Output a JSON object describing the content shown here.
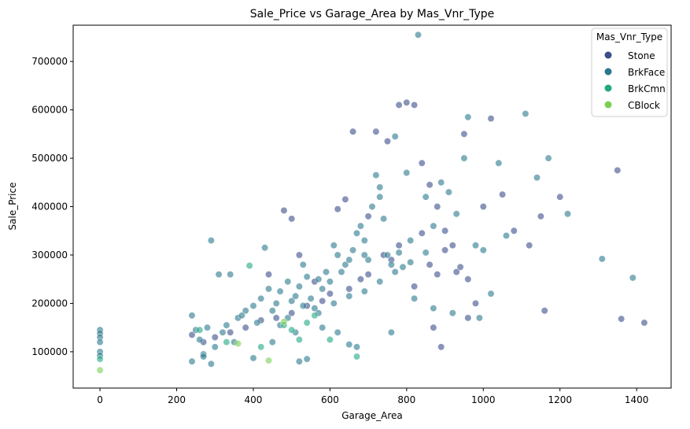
{
  "chart_data": {
    "type": "scatter",
    "title": "Sale_Price vs Garage_Area by Mas_Vnr_Type",
    "xlabel": "Garage_Area",
    "ylabel": "Sale_Price",
    "xlim": [
      -70,
      1490
    ],
    "ylim": [
      25000,
      775000
    ],
    "x_ticks": [
      0,
      200,
      400,
      600,
      800,
      1000,
      1200,
      1400
    ],
    "y_ticks": [
      100000,
      200000,
      300000,
      400000,
      500000,
      600000,
      700000
    ],
    "grid": false,
    "legend": {
      "title": "Mas_Vnr_Type",
      "placement": "top-right"
    },
    "series": [
      {
        "name": "Stone",
        "color": "#3b4d8a",
        "points": [
          [
            480,
            392000
          ],
          [
            500,
            375000
          ],
          [
            440,
            260000
          ],
          [
            520,
            300000
          ],
          [
            560,
            245000
          ],
          [
            620,
            395000
          ],
          [
            640,
            415000
          ],
          [
            660,
            555000
          ],
          [
            700,
            380000
          ],
          [
            720,
            555000
          ],
          [
            750,
            535000
          ],
          [
            780,
            610000
          ],
          [
            800,
            615000
          ],
          [
            820,
            610000
          ],
          [
            840,
            490000
          ],
          [
            860,
            445000
          ],
          [
            880,
            400000
          ],
          [
            900,
            350000
          ],
          [
            920,
            320000
          ],
          [
            940,
            275000
          ],
          [
            960,
            250000
          ],
          [
            980,
            200000
          ],
          [
            1000,
            400000
          ],
          [
            1020,
            582000
          ],
          [
            1050,
            425000
          ],
          [
            1080,
            350000
          ],
          [
            1120,
            320000
          ],
          [
            1150,
            380000
          ],
          [
            1160,
            185000
          ],
          [
            1200,
            420000
          ],
          [
            1350,
            475000
          ],
          [
            1360,
            168000
          ],
          [
            1420,
            160000
          ],
          [
            950,
            550000
          ],
          [
            880,
            260000
          ],
          [
            860,
            280000
          ],
          [
            820,
            235000
          ],
          [
            780,
            320000
          ],
          [
            760,
            290000
          ],
          [
            740,
            300000
          ],
          [
            700,
            260000
          ],
          [
            680,
            250000
          ],
          [
            650,
            230000
          ],
          [
            600,
            220000
          ],
          [
            580,
            205000
          ],
          [
            540,
            195000
          ],
          [
            500,
            180000
          ],
          [
            460,
            170000
          ],
          [
            420,
            165000
          ],
          [
            380,
            150000
          ],
          [
            340,
            140000
          ],
          [
            300,
            130000
          ],
          [
            270,
            120000
          ],
          [
            240,
            135000
          ],
          [
            840,
            345000
          ],
          [
            900,
            310000
          ],
          [
            930,
            265000
          ],
          [
            960,
            170000
          ],
          [
            870,
            150000
          ],
          [
            890,
            110000
          ]
        ]
      },
      {
        "name": "BrkFace",
        "color": "#2a788e",
        "points": [
          [
            0,
            145000
          ],
          [
            0,
            138000
          ],
          [
            0,
            130000
          ],
          [
            0,
            120000
          ],
          [
            0,
            100000
          ],
          [
            0,
            92000
          ],
          [
            240,
            175000
          ],
          [
            250,
            145000
          ],
          [
            260,
            125000
          ],
          [
            270,
            95000
          ],
          [
            280,
            150000
          ],
          [
            290,
            330000
          ],
          [
            300,
            110000
          ],
          [
            310,
            260000
          ],
          [
            320,
            140000
          ],
          [
            340,
            260000
          ],
          [
            360,
            170000
          ],
          [
            380,
            185000
          ],
          [
            400,
            195000
          ],
          [
            420,
            210000
          ],
          [
            430,
            315000
          ],
          [
            440,
            230000
          ],
          [
            460,
            200000
          ],
          [
            470,
            225000
          ],
          [
            490,
            245000
          ],
          [
            500,
            205000
          ],
          [
            510,
            215000
          ],
          [
            520,
            235000
          ],
          [
            530,
            280000
          ],
          [
            540,
            255000
          ],
          [
            550,
            210000
          ],
          [
            560,
            190000
          ],
          [
            570,
            250000
          ],
          [
            580,
            230000
          ],
          [
            590,
            265000
          ],
          [
            600,
            245000
          ],
          [
            610,
            320000
          ],
          [
            620,
            300000
          ],
          [
            630,
            265000
          ],
          [
            640,
            280000
          ],
          [
            650,
            290000
          ],
          [
            660,
            310000
          ],
          [
            670,
            345000
          ],
          [
            680,
            360000
          ],
          [
            690,
            330000
          ],
          [
            700,
            290000
          ],
          [
            710,
            400000
          ],
          [
            720,
            465000
          ],
          [
            730,
            420000
          ],
          [
            740,
            375000
          ],
          [
            750,
            300000
          ],
          [
            760,
            280000
          ],
          [
            770,
            545000
          ],
          [
            780,
            305000
          ],
          [
            790,
            275000
          ],
          [
            800,
            470000
          ],
          [
            810,
            330000
          ],
          [
            830,
            755000
          ],
          [
            850,
            420000
          ],
          [
            870,
            360000
          ],
          [
            890,
            450000
          ],
          [
            910,
            430000
          ],
          [
            930,
            385000
          ],
          [
            950,
            500000
          ],
          [
            960,
            585000
          ],
          [
            980,
            320000
          ],
          [
            1000,
            310000
          ],
          [
            1020,
            220000
          ],
          [
            1040,
            490000
          ],
          [
            1060,
            340000
          ],
          [
            1110,
            592000
          ],
          [
            1140,
            460000
          ],
          [
            1170,
            500000
          ],
          [
            1220,
            385000
          ],
          [
            1310,
            292000
          ],
          [
            1390,
            253000
          ],
          [
            240,
            80000
          ],
          [
            270,
            90000
          ],
          [
            290,
            75000
          ],
          [
            350,
            120000
          ],
          [
            400,
            87000
          ],
          [
            450,
            120000
          ],
          [
            520,
            80000
          ],
          [
            540,
            85000
          ],
          [
            580,
            150000
          ],
          [
            620,
            140000
          ],
          [
            650,
            115000
          ],
          [
            670,
            110000
          ],
          [
            690,
            300000
          ],
          [
            730,
            440000
          ],
          [
            760,
            140000
          ],
          [
            820,
            210000
          ],
          [
            870,
            190000
          ],
          [
            920,
            180000
          ],
          [
            990,
            170000
          ],
          [
            330,
            155000
          ],
          [
            370,
            175000
          ],
          [
            410,
            160000
          ],
          [
            450,
            185000
          ],
          [
            490,
            170000
          ],
          [
            530,
            195000
          ],
          [
            570,
            180000
          ],
          [
            610,
            200000
          ],
          [
            650,
            215000
          ],
          [
            690,
            225000
          ],
          [
            730,
            245000
          ],
          [
            770,
            265000
          ],
          [
            810,
            285000
          ],
          [
            850,
            305000
          ],
          [
            470,
            155000
          ],
          [
            510,
            140000
          ]
        ]
      },
      {
        "name": "BrkCmn",
        "color": "#22a884",
        "points": [
          [
            0,
            85000
          ],
          [
            260,
            145000
          ],
          [
            330,
            120000
          ],
          [
            390,
            278000
          ],
          [
            420,
            110000
          ],
          [
            480,
            155000
          ],
          [
            520,
            125000
          ],
          [
            540,
            160000
          ],
          [
            600,
            125000
          ],
          [
            670,
            90000
          ],
          [
            560,
            175000
          ],
          [
            500,
            145000
          ]
        ]
      },
      {
        "name": "CBlock",
        "color": "#7ad151",
        "points": [
          [
            0,
            62000
          ],
          [
            440,
            82000
          ],
          [
            480,
            162000
          ],
          [
            360,
            117000
          ]
        ]
      }
    ]
  }
}
